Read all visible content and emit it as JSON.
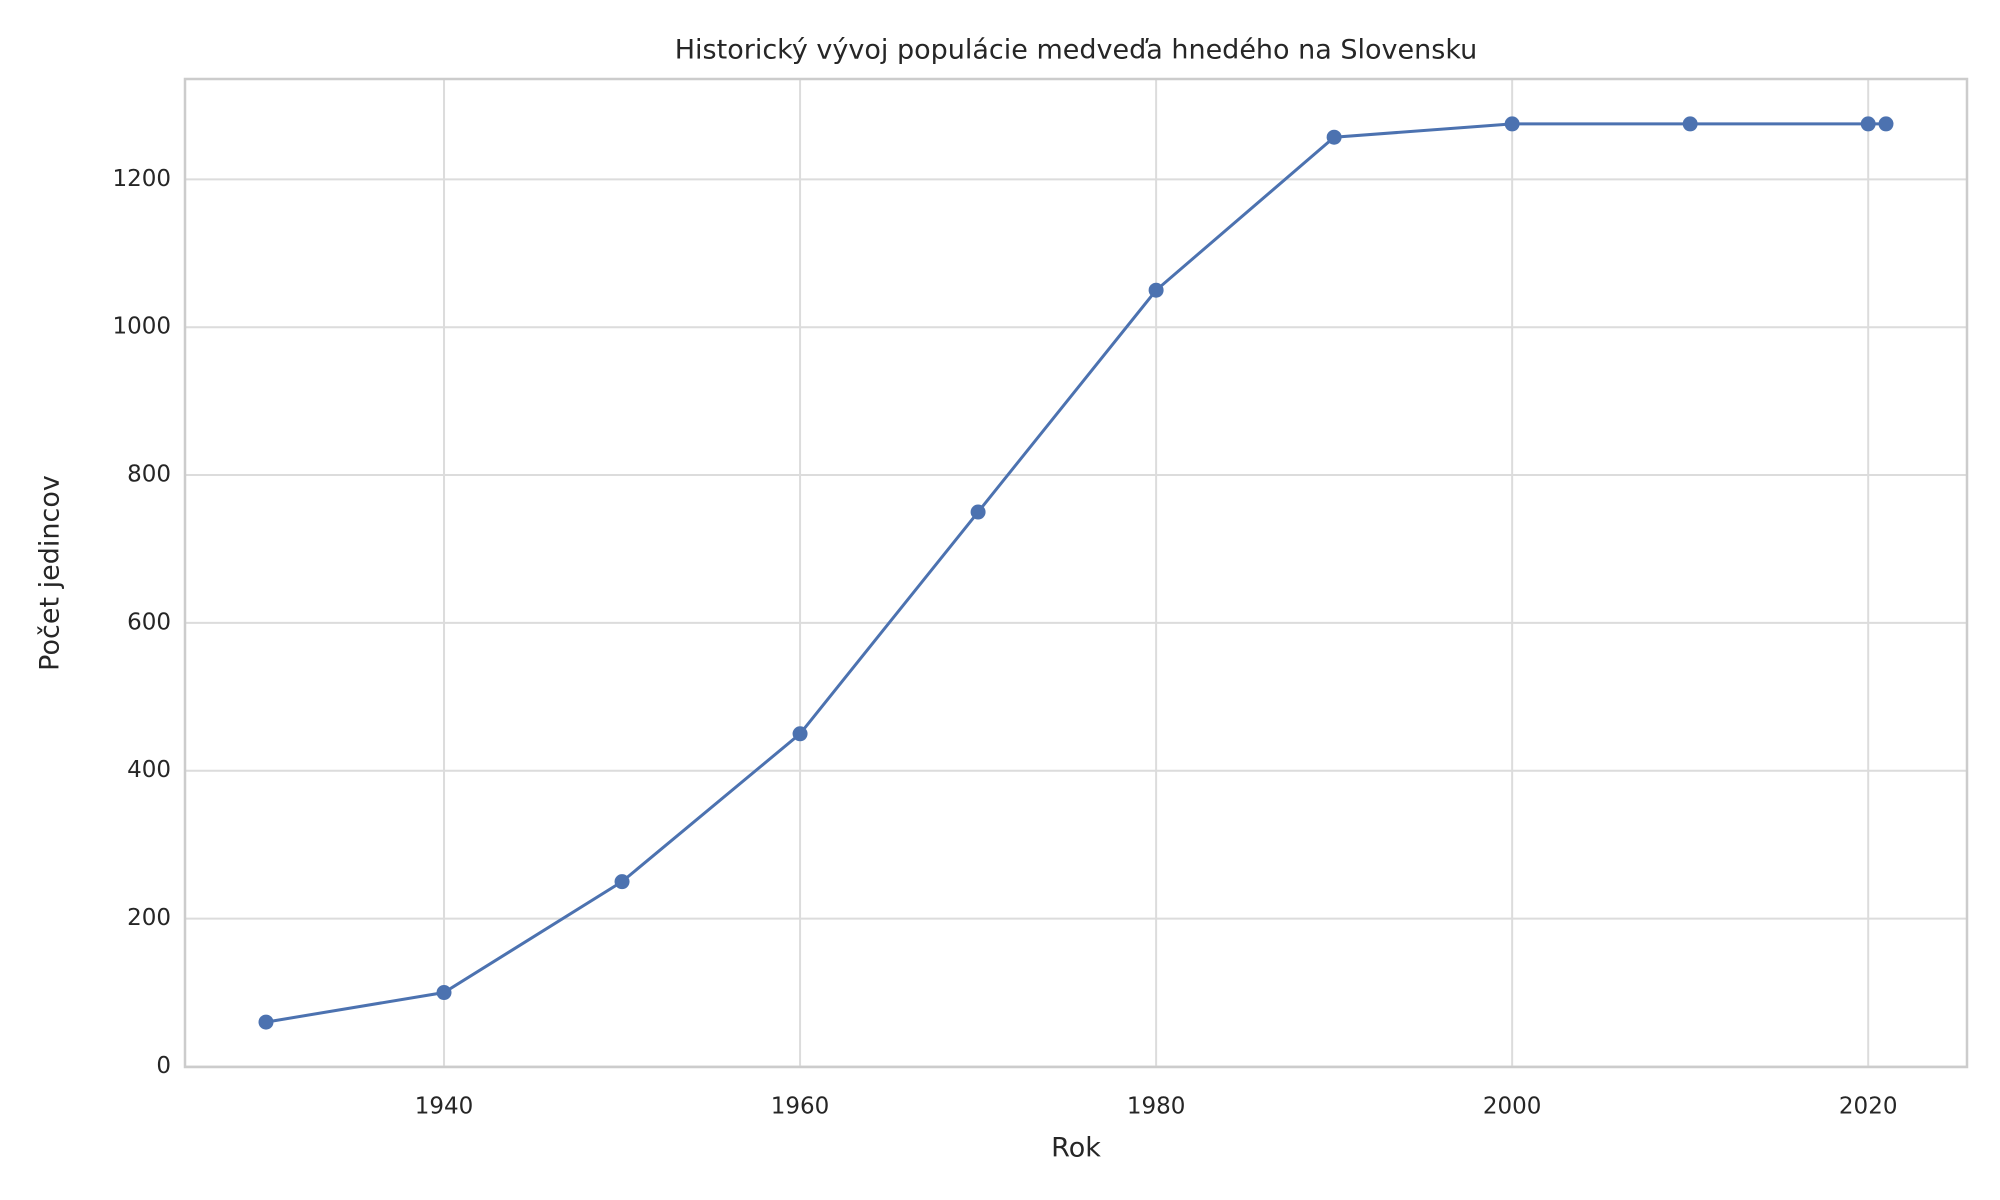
{
  "chart_data": {
    "type": "line",
    "title": "Historický vývoj populácie medveďa hnedého na Slovensku",
    "xlabel": "Rok",
    "ylabel": "Počet jedincov",
    "x": [
      1930,
      1940,
      1950,
      1960,
      1970,
      1980,
      1990,
      2000,
      2010,
      2020,
      2021
    ],
    "series": [
      {
        "color": "#4c72b0",
        "values": [
          60,
          100,
          250,
          450,
          750,
          1050,
          1257,
          1275,
          1275,
          1275,
          1275
        ]
      }
    ],
    "xlim": [
      1925.45,
      2025.55
    ],
    "xticks": [
      1940,
      1960,
      1980,
      2000,
      2020
    ],
    "ylim": [
      -0.75,
      1335.75
    ],
    "yticks": [
      0,
      200,
      400,
      600,
      800,
      1000,
      1200
    ],
    "grid": true
  }
}
